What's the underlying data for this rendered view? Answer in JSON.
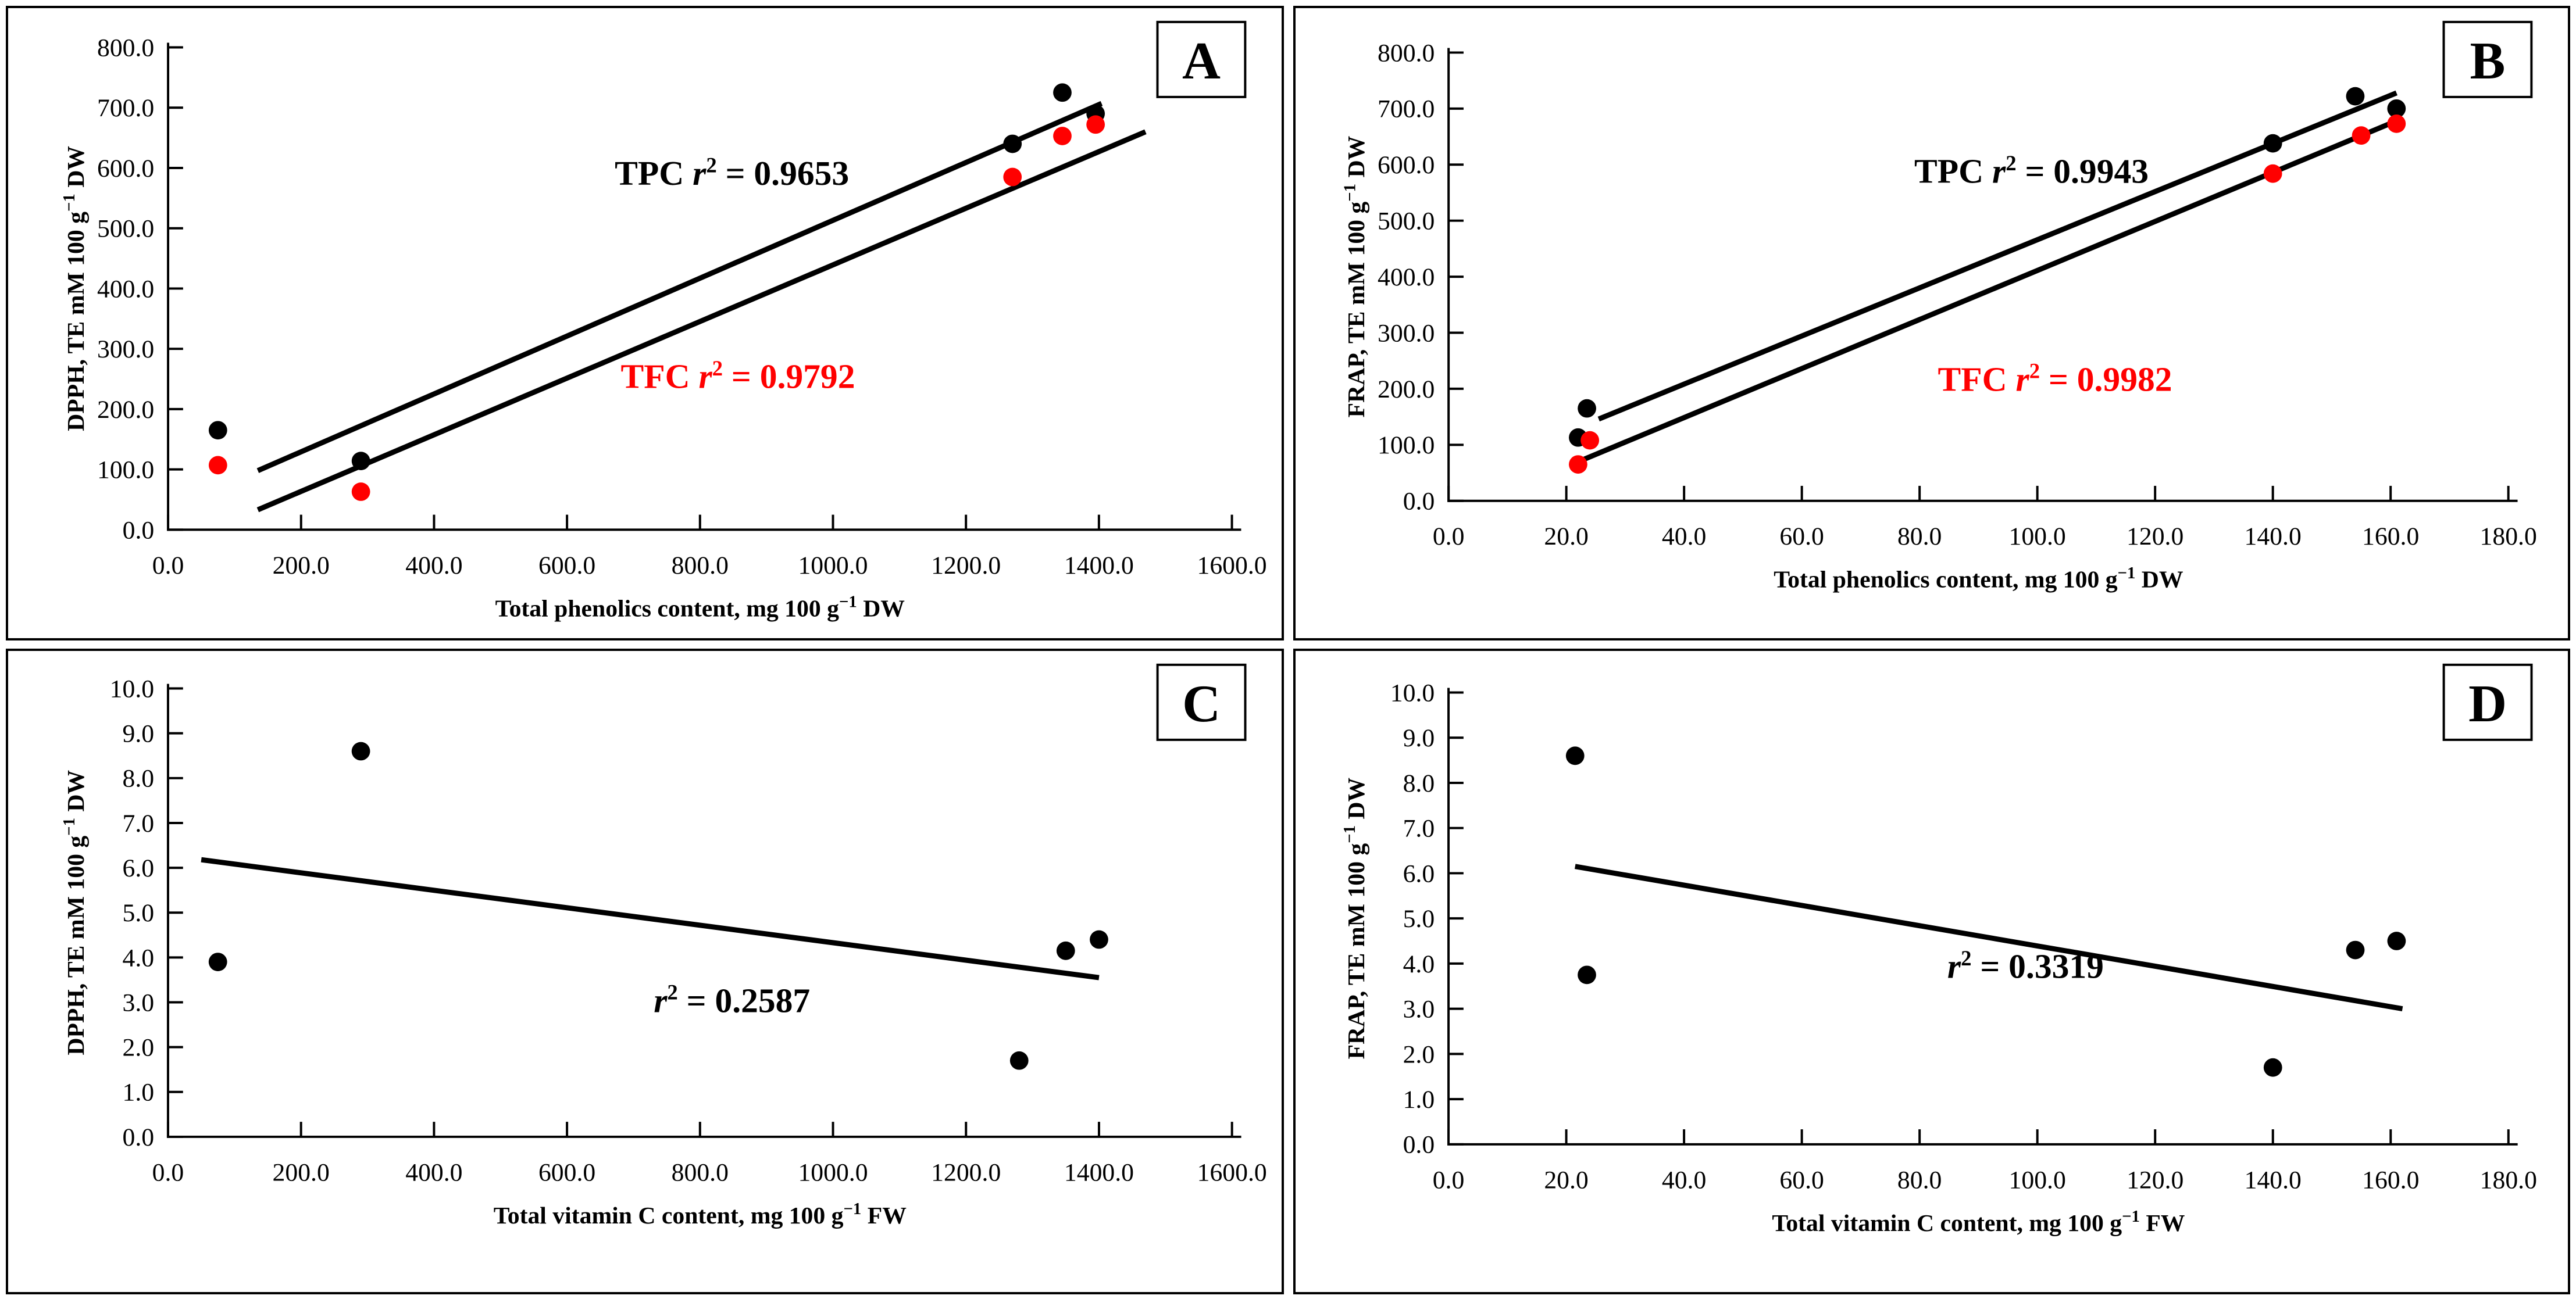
{
  "figure": {
    "background": "#ffffff",
    "border_color": "#000000",
    "series_colors": {
      "TPC": "#000000",
      "TFC": "#ff0000"
    }
  },
  "chart_data": [
    {
      "panel_label": "A",
      "type": "scatter",
      "xlabel_parts": {
        "pre": "Total phenolics content, mg 100 g",
        "sup": "−1",
        "post": " DW"
      },
      "ylabel_parts": {
        "pre": "DPPH, TE mM 100 g",
        "sup": "−1",
        "post": " DW"
      },
      "xlim": [
        0,
        1600
      ],
      "ylim": [
        0,
        800
      ],
      "x_tick_labels": [
        "0.0",
        "200.0",
        "400.0",
        "600.0",
        "800.0",
        "1000.0",
        "1200.0",
        "1400.0",
        "1600.0"
      ],
      "y_tick_labels": [
        "0.0",
        "100.0",
        "200.0",
        "300.0",
        "400.0",
        "500.0",
        "600.0",
        "700.0",
        "800.0"
      ],
      "grid": false,
      "legend": "none",
      "series": [
        {
          "name": "TPC",
          "color": "#000000",
          "points": [
            [
              75,
              165
            ],
            [
              290,
              114
            ],
            [
              1270,
              640
            ],
            [
              1345,
              725
            ],
            [
              1395,
              690
            ]
          ],
          "trendline": {
            "x1": 135,
            "y1": 98,
            "x2": 1404,
            "y2": 707
          },
          "r2": "0.9653"
        },
        {
          "name": "TFC",
          "color": "#ff0000",
          "points": [
            [
              75,
              107
            ],
            [
              290,
              63
            ],
            [
              1270,
              585
            ],
            [
              1345,
              653
            ],
            [
              1395,
              672
            ]
          ],
          "trendline": {
            "x1": 135,
            "y1": 33,
            "x2": 1470,
            "y2": 660
          },
          "r2": "0.9792"
        }
      ],
      "annotations": [
        {
          "prefix": "TPC ",
          "r": "r",
          "exp": "2",
          "rest": " = 0.9653",
          "color": "#000000",
          "x": 848,
          "y": 592
        },
        {
          "prefix": "TFC ",
          "r": "r",
          "exp": "2",
          "rest": " = 0.9792",
          "color": "#ff0000",
          "x": 857,
          "y": 255
        }
      ]
    },
    {
      "panel_label": "B",
      "type": "scatter",
      "xlabel_parts": {
        "pre": "Total phenolics content, mg 100 g",
        "sup": "−1",
        "post": " DW"
      },
      "ylabel_parts": {
        "pre": "FRAP, TE mM 100 g",
        "sup": "−1",
        "post": " DW"
      },
      "xlim": [
        0,
        180
      ],
      "ylim": [
        0,
        800
      ],
      "x_tick_labels": [
        "0.0",
        "20.0",
        "40.0",
        "60.0",
        "80.0",
        "100.0",
        "120.0",
        "140.0",
        "160.0",
        "180.0"
      ],
      "y_tick_labels": [
        "0.0",
        "100.0",
        "200.0",
        "300.0",
        "400.0",
        "500.0",
        "600.0",
        "700.0",
        "800.0"
      ],
      "grid": false,
      "legend": "none",
      "series": [
        {
          "name": "TPC",
          "color": "#000000",
          "points": [
            [
              22,
              113
            ],
            [
              23.5,
              165
            ],
            [
              140,
              638
            ],
            [
              154,
              722
            ],
            [
              161,
              700
            ]
          ],
          "trendline": {
            "x1": 25.5,
            "y1": 146,
            "x2": 161,
            "y2": 728
          },
          "r2": "0.9943"
        },
        {
          "name": "TFC",
          "color": "#ff0000",
          "points": [
            [
              22,
              65
            ],
            [
              24,
              108
            ],
            [
              140,
              584
            ],
            [
              155,
              652
            ],
            [
              161,
              673
            ]
          ],
          "trendline": {
            "x1": 22.5,
            "y1": 72,
            "x2": 161,
            "y2": 678
          },
          "r2": "0.9982"
        }
      ],
      "annotations": [
        {
          "prefix": "TPC ",
          "r": "r",
          "exp": "2",
          "rest": " = 0.9943",
          "color": "#000000",
          "x": 99,
          "y": 589
        },
        {
          "prefix": "TFC ",
          "r": "r",
          "exp": "2",
          "rest": " = 0.9982",
          "color": "#ff0000",
          "x": 103,
          "y": 218
        }
      ]
    },
    {
      "panel_label": "C",
      "type": "scatter",
      "xlabel_parts": {
        "pre": "Total vitamin C content, mg 100 g",
        "sup": "−1",
        "post": " FW"
      },
      "ylabel_parts": {
        "pre": "DPPH, TE mM 100 g",
        "sup": "−1",
        "post": " DW"
      },
      "xlim": [
        0,
        1600
      ],
      "ylim": [
        0,
        10
      ],
      "x_tick_labels": [
        "0.0",
        "200.0",
        "400.0",
        "600.0",
        "800.0",
        "1000.0",
        "1200.0",
        "1400.0",
        "1600.0"
      ],
      "y_tick_labels": [
        "0.0",
        "1.0",
        "2.0",
        "3.0",
        "4.0",
        "5.0",
        "6.0",
        "7.0",
        "8.0",
        "9.0",
        "10.0"
      ],
      "grid": false,
      "legend": "none",
      "series": [
        {
          "name": "DPPH",
          "color": "#000000",
          "points": [
            [
              75,
              3.9
            ],
            [
              290,
              8.6
            ],
            [
              1280,
              1.7
            ],
            [
              1350,
              4.15
            ],
            [
              1400,
              4.4
            ]
          ],
          "trendline": {
            "x1": 50,
            "y1": 6.18,
            "x2": 1400,
            "y2": 3.55
          },
          "r2": "0.2587"
        }
      ],
      "annotations": [
        {
          "prefix": "",
          "r": "r",
          "exp": "2",
          "rest": " = 0.2587",
          "color": "#000000",
          "x": 848,
          "y": 3.05
        }
      ]
    },
    {
      "panel_label": "D",
      "type": "scatter",
      "xlabel_parts": {
        "pre": "Total vitamin C content, mg 100 g",
        "sup": "−1",
        "post": " FW"
      },
      "ylabel_parts": {
        "pre": "FRAP, TE mM 100 g",
        "sup": "−1",
        "post": " DW"
      },
      "xlim": [
        0,
        180
      ],
      "ylim": [
        0,
        10
      ],
      "x_tick_labels": [
        "0.0",
        "20.0",
        "40.0",
        "60.0",
        "80.0",
        "100.0",
        "120.0",
        "140.0",
        "160.0",
        "180.0"
      ],
      "y_tick_labels": [
        "0.0",
        "1.0",
        "2.0",
        "3.0",
        "4.0",
        "5.0",
        "6.0",
        "7.0",
        "8.0",
        "9.0",
        "10.0"
      ],
      "grid": false,
      "legend": "none",
      "series": [
        {
          "name": "FRAP",
          "color": "#000000",
          "points": [
            [
              21.5,
              8.6
            ],
            [
              23.5,
              3.75
            ],
            [
              140,
              1.7
            ],
            [
              154,
              4.3
            ],
            [
              161,
              4.5
            ]
          ],
          "trendline": {
            "x1": 21.5,
            "y1": 6.15,
            "x2": 162,
            "y2": 3.0
          },
          "r2": "0.3319"
        }
      ],
      "annotations": [
        {
          "prefix": "",
          "r": "r",
          "exp": "2",
          "rest": " = 0.3319",
          "color": "#000000",
          "x": 98,
          "y": 3.95
        }
      ]
    }
  ]
}
